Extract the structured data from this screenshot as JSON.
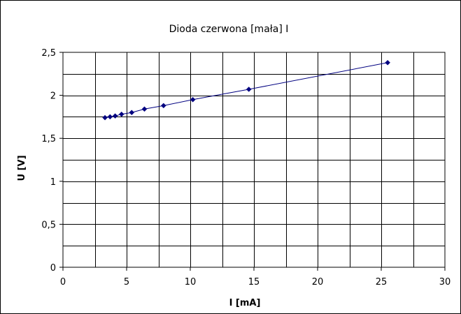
{
  "chart_data": {
    "type": "scatter",
    "title": "Dioda czerwona [mała] I",
    "xlabel": "I [mA]",
    "ylabel": "U [V]",
    "xlim": [
      0,
      30
    ],
    "ylim": [
      0,
      2.5
    ],
    "x_ticks": [
      "0",
      "5",
      "10",
      "15",
      "20",
      "25",
      "30"
    ],
    "y_ticks": [
      "0",
      "0,5",
      "1",
      "1,5",
      "2",
      "2,5"
    ],
    "grid": true,
    "legend": "none",
    "series": [
      {
        "color": "#000080",
        "line": "connected",
        "marker": "diamond",
        "x": [
          3.3,
          3.7,
          4.1,
          4.6,
          5.4,
          6.4,
          7.9,
          10.2,
          14.6,
          25.5
        ],
        "y": [
          1.74,
          1.75,
          1.76,
          1.78,
          1.8,
          1.84,
          1.88,
          1.95,
          2.07,
          2.38
        ]
      }
    ]
  }
}
